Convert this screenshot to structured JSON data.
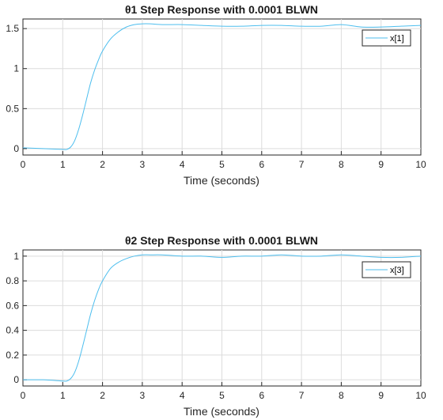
{
  "colors": {
    "series": "#4dbeee",
    "grid": "#dcdcdc",
    "axes": "#262626"
  },
  "chart_data": [
    {
      "type": "line",
      "title": "θ1 Step Response with 0.0001 BLWN",
      "xlabel": "Time (seconds)",
      "ylabel": "",
      "xlim": [
        0,
        10
      ],
      "ylim": [
        -0.08,
        1.62
      ],
      "grid": true,
      "legend_position": "top-right",
      "x_ticks": [
        "0",
        "1",
        "2",
        "3",
        "4",
        "5",
        "6",
        "7",
        "8",
        "9",
        "10"
      ],
      "y_ticks": [
        "0",
        "0.5",
        "1",
        "1.5"
      ],
      "y_tick_values": [
        0,
        0.5,
        1,
        1.5
      ],
      "series": [
        {
          "name": "x[1]",
          "x": [
            0,
            0.5,
            1.0,
            1.1,
            1.2,
            1.3,
            1.4,
            1.5,
            1.6,
            1.7,
            1.8,
            1.9,
            2.0,
            2.2,
            2.4,
            2.6,
            2.8,
            3.0,
            3.2,
            3.5,
            4.0,
            4.5,
            5.0,
            5.5,
            6.0,
            6.5,
            7.0,
            7.5,
            8.0,
            8.5,
            9.0,
            9.5,
            10.0
          ],
          "y": [
            0.01,
            0.0,
            -0.01,
            -0.01,
            0.02,
            0.1,
            0.24,
            0.42,
            0.62,
            0.82,
            0.98,
            1.11,
            1.22,
            1.37,
            1.46,
            1.52,
            1.55,
            1.56,
            1.56,
            1.55,
            1.55,
            1.54,
            1.53,
            1.53,
            1.54,
            1.54,
            1.53,
            1.53,
            1.55,
            1.52,
            1.52,
            1.53,
            1.54
          ]
        }
      ]
    },
    {
      "type": "line",
      "title": "θ2 Step Response with 0.0001 BLWN",
      "xlabel": "Time (seconds)",
      "ylabel": "",
      "xlim": [
        0,
        10
      ],
      "ylim": [
        -0.05,
        1.05
      ],
      "grid": true,
      "legend_position": "top-right",
      "x_ticks": [
        "0",
        "1",
        "2",
        "3",
        "4",
        "5",
        "6",
        "7",
        "8",
        "9",
        "10"
      ],
      "y_ticks": [
        "0",
        "0.2",
        "0.4",
        "0.6",
        "0.8",
        "1"
      ],
      "y_tick_values": [
        0,
        0.2,
        0.4,
        0.6,
        0.8,
        1
      ],
      "series": [
        {
          "name": "x[3]",
          "x": [
            0,
            0.5,
            1.0,
            1.1,
            1.2,
            1.3,
            1.4,
            1.5,
            1.6,
            1.7,
            1.8,
            1.9,
            2.0,
            2.2,
            2.4,
            2.6,
            2.8,
            3.0,
            3.2,
            3.5,
            4.0,
            4.5,
            5.0,
            5.5,
            6.0,
            6.5,
            7.0,
            7.5,
            8.0,
            8.5,
            9.0,
            9.5,
            10.0
          ],
          "y": [
            0.0,
            0.0,
            -0.01,
            -0.01,
            0.01,
            0.06,
            0.15,
            0.27,
            0.4,
            0.53,
            0.64,
            0.73,
            0.8,
            0.9,
            0.95,
            0.98,
            1.0,
            1.01,
            1.01,
            1.01,
            1.0,
            1.0,
            0.99,
            1.0,
            1.0,
            1.01,
            1.0,
            1.0,
            1.01,
            1.0,
            0.99,
            0.99,
            1.0
          ]
        }
      ]
    }
  ]
}
